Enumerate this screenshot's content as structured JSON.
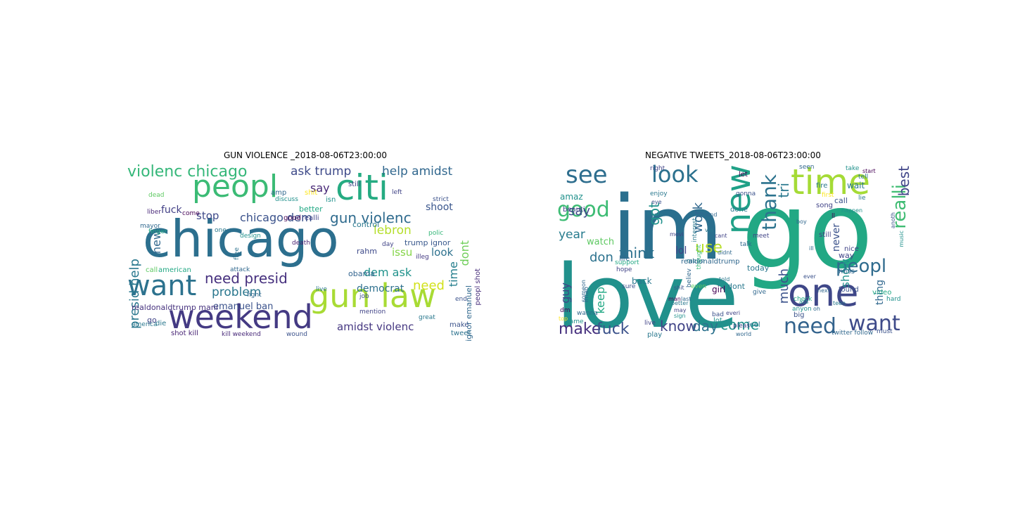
{
  "panels": [
    {
      "title": "GUN VIOLENCE _2018-08-06T23:00:00",
      "words": [
        {
          "t": "chicago",
          "c": "#2c6f8e"
        },
        {
          "t": "weekend",
          "c": "#443a83"
        },
        {
          "t": "gun law",
          "c": "#a8db34"
        },
        {
          "t": "peopl",
          "c": "#3bbb75"
        },
        {
          "t": "citi",
          "c": "#25ab82"
        },
        {
          "t": "want",
          "c": "#2c728e"
        },
        {
          "t": "violenc chicago",
          "c": "#35b779"
        },
        {
          "t": "gun violenc",
          "c": "#2f6b8e"
        },
        {
          "t": "need presid",
          "c": "#46307e"
        },
        {
          "t": "presid help",
          "c": "#2a788e"
        },
        {
          "t": "ask trump",
          "c": "#3e4a89"
        },
        {
          "t": "help amidst",
          "c": "#31678e"
        },
        {
          "t": "problem",
          "c": "#2a778e"
        },
        {
          "t": "chicago dem",
          "c": "#3b528b"
        },
        {
          "t": "lebron",
          "c": "#b5de2b"
        },
        {
          "t": "dem ask",
          "c": "#20928c"
        },
        {
          "t": "democrat",
          "c": "#2d708e"
        },
        {
          "t": "need",
          "c": "#d2e21b"
        },
        {
          "t": "amidst violenc",
          "c": "#453781"
        },
        {
          "t": "time",
          "c": "#277f8e"
        },
        {
          "t": "dont",
          "c": "#6ece58"
        },
        {
          "t": "shoot",
          "c": "#39558c"
        },
        {
          "t": "stop",
          "c": "#3e4989"
        },
        {
          "t": "fuck",
          "c": "#424086"
        },
        {
          "t": "say",
          "c": "#482878"
        },
        {
          "t": "new",
          "c": "#31688e"
        },
        {
          "t": "issu",
          "c": "#86d549"
        },
        {
          "t": "look",
          "c": "#2d718e"
        },
        {
          "t": "emanuel ban",
          "c": "#3b528b"
        },
        {
          "t": "realdonaldtrump mani",
          "c": "#46327e"
        },
        {
          "t": "trump ignor",
          "c": "#38588c"
        },
        {
          "t": "ignor emanuel",
          "c": "#31688e"
        },
        {
          "t": "peopl shot",
          "c": "#472d7b"
        },
        {
          "t": "obama",
          "c": "#32648e"
        },
        {
          "t": "american",
          "c": "#22a884"
        },
        {
          "t": "call",
          "c": "#5ec962"
        },
        {
          "t": "rahm",
          "c": "#3e4a89"
        },
        {
          "t": "shot kill",
          "c": "#482475"
        },
        {
          "t": "go",
          "c": "#414487"
        },
        {
          "t": "die",
          "c": "#2a788e"
        },
        {
          "t": "kill weekend",
          "c": "#482979"
        },
        {
          "t": "wound",
          "c": "#3b528b"
        },
        {
          "t": "tweet",
          "c": "#2c728e"
        },
        {
          "t": "make",
          "c": "#3b528b"
        },
        {
          "t": "live",
          "c": "#2a788e"
        },
        {
          "t": "better",
          "c": "#22a884"
        },
        {
          "t": "realli",
          "c": "#414487"
        },
        {
          "t": "good",
          "c": "#440154"
        },
        {
          "t": "shit",
          "c": "#fde725"
        },
        {
          "t": "control",
          "c": "#2a788e"
        },
        {
          "t": "still",
          "c": "#414487"
        },
        {
          "t": "amp",
          "c": "#31688e"
        },
        {
          "t": "isn",
          "c": "#21918c"
        },
        {
          "t": "death",
          "c": "#481f70"
        },
        {
          "t": "job",
          "c": "#3b528b"
        },
        {
          "t": "great",
          "c": "#2a788e"
        },
        {
          "t": "mention",
          "c": "#414487"
        },
        {
          "t": "america",
          "c": "#2a788e"
        },
        {
          "t": "dead",
          "c": "#5ec962"
        },
        {
          "t": "liber",
          "c": "#482878"
        },
        {
          "t": "finger",
          "c": "#22a884"
        },
        {
          "t": "end",
          "c": "#3b528b"
        },
        {
          "t": "day",
          "c": "#414487"
        },
        {
          "t": "mayor",
          "c": "#31688e"
        },
        {
          "t": "design",
          "c": "#21918c"
        },
        {
          "t": "come",
          "c": "#440154"
        },
        {
          "t": "one",
          "c": "#2a788e"
        },
        {
          "t": "free",
          "c": "#2c728e"
        },
        {
          "t": "attack",
          "c": "#31688e"
        },
        {
          "t": "illeg",
          "c": "#443a83"
        },
        {
          "t": "polic",
          "c": "#35b779"
        },
        {
          "t": "left",
          "c": "#414487"
        },
        {
          "t": "strict",
          "c": "#3b528b"
        },
        {
          "t": "fight",
          "c": "#31688e"
        },
        {
          "t": "discuss",
          "c": "#21918c"
        }
      ]
    },
    {
      "title": "NEGATIVE TWEETS_2018-08-06T23:00:00",
      "words": [
        {
          "t": "im",
          "c": "#2a6f8e"
        },
        {
          "t": "love",
          "c": "#21918c"
        },
        {
          "t": "go",
          "c": "#22a884"
        },
        {
          "t": "new",
          "c": "#1fa187"
        },
        {
          "t": "one",
          "c": "#3f4788"
        },
        {
          "t": "time",
          "c": "#a5db36"
        },
        {
          "t": "good",
          "c": "#3dbc74"
        },
        {
          "t": "see",
          "c": "#2e6e8e"
        },
        {
          "t": "look",
          "c": "#2c718e"
        },
        {
          "t": "want",
          "c": "#3e4a89"
        },
        {
          "t": "need",
          "c": "#33638d"
        },
        {
          "t": "peopl",
          "c": "#2f6b8e"
        },
        {
          "t": "thank",
          "c": "#2c738e"
        },
        {
          "t": "realli",
          "c": "#3fbc73"
        },
        {
          "t": "best",
          "c": "#404588"
        },
        {
          "t": "make",
          "c": "#46307e"
        },
        {
          "t": "fuck",
          "c": "#3b528b"
        },
        {
          "t": "know",
          "c": "#414487"
        },
        {
          "t": "day",
          "c": "#2c728e"
        },
        {
          "t": "come",
          "c": "#21918c"
        },
        {
          "t": "think",
          "c": "#2d718e"
        },
        {
          "t": "use",
          "c": "#b8de29"
        },
        {
          "t": "work",
          "c": "#31688e"
        },
        {
          "t": "tri",
          "c": "#2a788e"
        },
        {
          "t": "much",
          "c": "#3b528b"
        },
        {
          "t": "got",
          "c": "#20928c"
        },
        {
          "t": "say",
          "c": "#3e4a89"
        },
        {
          "t": "year",
          "c": "#287c8e"
        },
        {
          "t": "guy",
          "c": "#3f4788"
        },
        {
          "t": "don",
          "c": "#2c728e"
        },
        {
          "t": "keep",
          "c": "#22a884"
        },
        {
          "t": "lol",
          "c": "#414487"
        },
        {
          "t": "watch",
          "c": "#5ec962"
        },
        {
          "t": "back",
          "c": "#2a788e"
        },
        {
          "t": "show",
          "c": "#21918c"
        },
        {
          "t": "thing",
          "c": "#31688e"
        },
        {
          "t": "never",
          "c": "#3b528b"
        },
        {
          "t": "amaz",
          "c": "#21918c"
        },
        {
          "t": "beauti",
          "c": "#414487"
        },
        {
          "t": "realdonaldtrump",
          "c": "#31688e"
        },
        {
          "t": "girl",
          "c": "#440154"
        },
        {
          "t": "dont",
          "c": "#2a788e"
        },
        {
          "t": "call",
          "c": "#3b528b"
        },
        {
          "t": "way",
          "c": "#414487"
        },
        {
          "t": "wait",
          "c": "#2a788e"
        },
        {
          "t": "miss",
          "c": "#31688e"
        },
        {
          "t": "video",
          "c": "#22a884"
        },
        {
          "t": "found",
          "c": "#3b528b"
        },
        {
          "t": "hard",
          "c": "#21918c"
        },
        {
          "t": "nice",
          "c": "#414487"
        },
        {
          "t": "life",
          "c": "#31688e"
        },
        {
          "t": "lot",
          "c": "#21918c"
        },
        {
          "t": "feel",
          "c": "#2a788e"
        },
        {
          "t": "big",
          "c": "#3b528b"
        },
        {
          "t": "give",
          "c": "#31688e"
        },
        {
          "t": "today",
          "c": "#2a788e"
        },
        {
          "t": "first",
          "c": "#fde725"
        },
        {
          "t": "song",
          "c": "#414487"
        },
        {
          "t": "fire",
          "c": "#2a788e"
        },
        {
          "t": "seen",
          "c": "#31688e"
        },
        {
          "t": "let",
          "c": "#440154"
        },
        {
          "t": "gonna",
          "c": "#3b528b"
        },
        {
          "t": "done",
          "c": "#2a788e"
        },
        {
          "t": "meet",
          "c": "#414487"
        },
        {
          "t": "talk",
          "c": "#31688e"
        },
        {
          "t": "well",
          "c": "#21918c"
        },
        {
          "t": "bad",
          "c": "#3b528b"
        },
        {
          "t": "play",
          "c": "#2a788e"
        },
        {
          "t": "live",
          "c": "#414487"
        },
        {
          "t": "world",
          "c": "#31688e"
        },
        {
          "t": "check",
          "c": "#22a884"
        },
        {
          "t": "anyon",
          "c": "#21918c"
        },
        {
          "t": "interest",
          "c": "#2a788e"
        },
        {
          "t": "thought",
          "c": "#35b779"
        },
        {
          "t": "believ",
          "c": "#31688e"
        },
        {
          "t": "pleas",
          "c": "#414487"
        },
        {
          "t": "even",
          "c": "#5ec962"
        },
        {
          "t": "mean",
          "c": "#2a788e"
        },
        {
          "t": "lmao",
          "c": "#31688e"
        },
        {
          "t": "support",
          "c": "#22a884"
        },
        {
          "t": "hope",
          "c": "#414487"
        },
        {
          "t": "sure",
          "c": "#3b528b"
        },
        {
          "t": "dm",
          "c": "#440154"
        },
        {
          "t": "game",
          "c": "#21918c"
        },
        {
          "t": "top",
          "c": "#fde725"
        },
        {
          "t": "wanna",
          "c": "#31688e"
        },
        {
          "t": "enjoy",
          "c": "#2a788e"
        },
        {
          "t": "right",
          "c": "#414487"
        },
        {
          "t": "eye",
          "c": "#3b528b"
        },
        {
          "t": "friend",
          "c": "#31688e"
        },
        {
          "t": "take",
          "c": "#21918c"
        },
        {
          "t": "tell",
          "c": "#2a788e"
        },
        {
          "t": "start",
          "c": "#440154"
        },
        {
          "t": "must",
          "c": "#3b528b"
        },
        {
          "t": "twitter follow",
          "c": "#31688e"
        },
        {
          "t": "lie",
          "c": "#2a788e"
        },
        {
          "t": "still",
          "c": "#414487"
        },
        {
          "t": "ll",
          "c": "#440154"
        },
        {
          "t": "boy",
          "c": "#31688e"
        },
        {
          "t": "happen",
          "c": "#21918c"
        },
        {
          "t": "via",
          "c": "#2a788e"
        },
        {
          "t": "man",
          "c": "#440154"
        },
        {
          "t": "may",
          "c": "#414487"
        },
        {
          "t": "shit",
          "c": "#3b528b"
        },
        {
          "t": "ass",
          "c": "#21918c"
        },
        {
          "t": "oh",
          "c": "#31688e"
        },
        {
          "t": "better",
          "c": "#2a788e"
        },
        {
          "t": "next",
          "c": "#31688e"
        },
        {
          "t": "ill",
          "c": "#31688e"
        },
        {
          "t": "cant",
          "c": "#414487"
        },
        {
          "t": "didnt",
          "c": "#31688e"
        },
        {
          "t": "told",
          "c": "#2a788e"
        },
        {
          "t": "anoth",
          "c": "#3b528b"
        },
        {
          "t": "music",
          "c": "#21918c"
        },
        {
          "t": "movi",
          "c": "#414487"
        },
        {
          "t": "someon",
          "c": "#31688e"
        },
        {
          "t": "home",
          "c": "#2a788e"
        },
        {
          "t": "sign",
          "c": "#21918c"
        },
        {
          "t": "last",
          "c": "#31688e"
        },
        {
          "t": "everi",
          "c": "#414487"
        },
        {
          "t": "teen",
          "c": "#2a788e"
        },
        {
          "t": "ever",
          "c": "#3b528b"
        }
      ]
    }
  ]
}
